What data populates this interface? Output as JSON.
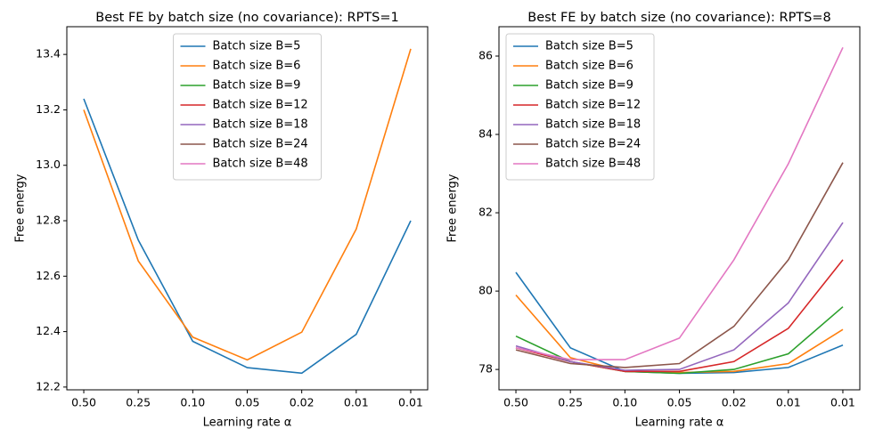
{
  "chart_data": [
    {
      "type": "line",
      "title": "Best FE by batch size (no covariance): RPTS=1",
      "xlabel": "Learning rate α",
      "ylabel": "Free energy",
      "categories": [
        "0.50",
        "0.25",
        "0.10",
        "0.05",
        "0.02",
        "0.01",
        "0.01"
      ],
      "ylim": [
        12.19,
        13.5
      ],
      "yticks": [
        12.2,
        12.4,
        12.6,
        12.8,
        {
          "value": 13,
          "label": "13.0"
        },
        13.2,
        13.4
      ],
      "legend": "upper center",
      "series": [
        {
          "name": "Batch size B=5",
          "color": "#1f77b4",
          "values": [
            13.24,
            12.73,
            12.365,
            12.27,
            12.25,
            12.39,
            12.8
          ]
        },
        {
          "name": "Batch size B=6",
          "color": "#ff7f0e",
          "values": [
            13.2,
            12.655,
            12.38,
            12.298,
            12.398,
            12.77,
            13.42
          ]
        },
        {
          "name": "Batch size B=9",
          "color": "#2ca02c",
          "values": [
            null,
            null,
            null,
            null,
            null,
            null,
            null
          ]
        },
        {
          "name": "Batch size B=12",
          "color": "#d62728",
          "values": [
            null,
            null,
            null,
            null,
            null,
            null,
            null
          ]
        },
        {
          "name": "Batch size B=18",
          "color": "#9467bd",
          "values": [
            null,
            null,
            null,
            null,
            null,
            null,
            null
          ]
        },
        {
          "name": "Batch size B=24",
          "color": "#8c564b",
          "values": [
            null,
            null,
            null,
            null,
            null,
            null,
            null
          ]
        },
        {
          "name": "Batch size B=48",
          "color": "#e377c2",
          "values": [
            null,
            null,
            null,
            null,
            null,
            null,
            null
          ]
        }
      ]
    },
    {
      "type": "line",
      "title": "Best FE by batch size (no covariance): RPTS=8",
      "xlabel": "Learning rate α",
      "ylabel": "Free energy",
      "categories": [
        "0.50",
        "0.25",
        "0.10",
        "0.05",
        "0.02",
        "0.01",
        "0.01"
      ],
      "ylim": [
        77.48,
        86.75
      ],
      "yticks": [
        78,
        80,
        82,
        84,
        86
      ],
      "legend": "upper left",
      "series": [
        {
          "name": "Batch size B=5",
          "color": "#1f77b4",
          "values": [
            80.48,
            78.55,
            77.95,
            77.9,
            77.92,
            78.05,
            78.62
          ]
        },
        {
          "name": "Batch size B=6",
          "color": "#ff7f0e",
          "values": [
            79.9,
            78.3,
            77.95,
            77.92,
            77.95,
            78.15,
            79.02
          ]
        },
        {
          "name": "Batch size B=9",
          "color": "#2ca02c",
          "values": [
            78.85,
            78.2,
            77.95,
            77.9,
            78.0,
            78.4,
            79.6
          ]
        },
        {
          "name": "Batch size B=12",
          "color": "#d62728",
          "values": [
            78.55,
            78.2,
            77.95,
            77.95,
            78.2,
            79.05,
            80.8
          ]
        },
        {
          "name": "Batch size B=18",
          "color": "#9467bd",
          "values": [
            78.6,
            78.2,
            77.98,
            78.0,
            78.5,
            79.7,
            81.75
          ]
        },
        {
          "name": "Batch size B=24",
          "color": "#8c564b",
          "values": [
            78.5,
            78.15,
            78.05,
            78.15,
            79.1,
            80.8,
            83.28
          ]
        },
        {
          "name": "Batch size B=48",
          "color": "#e377c2",
          "values": [
            78.55,
            78.25,
            78.25,
            78.8,
            80.8,
            83.25,
            86.22
          ]
        }
      ]
    }
  ]
}
